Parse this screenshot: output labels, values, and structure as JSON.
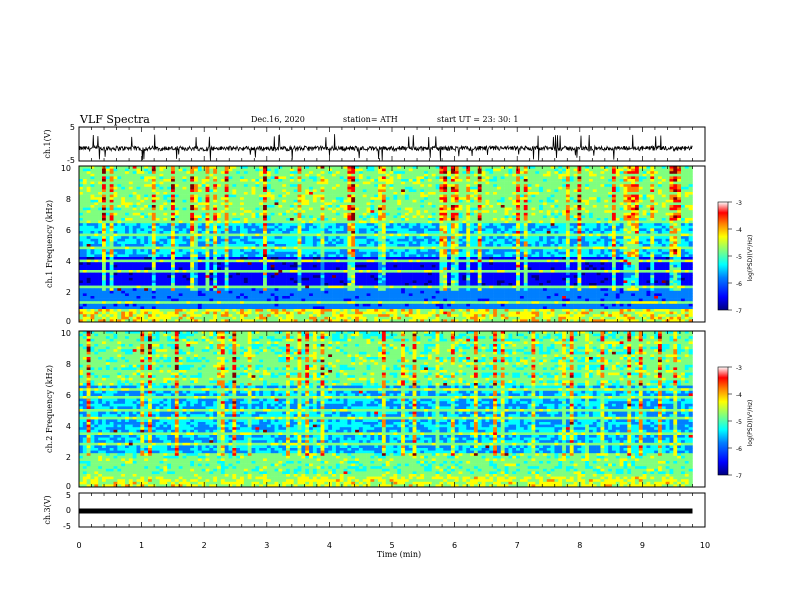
{
  "header": {
    "title": "VLF Spectra",
    "date": "Dec.16, 2020",
    "station": "station= ATH",
    "start_time": "start  UT  =   23: 30: 1"
  },
  "chart_data": [
    {
      "type": "line",
      "panel": "ch1-waveform",
      "ylabel": "ch.1(V)",
      "ylim": [
        -5,
        5
      ],
      "yticks": [
        "5",
        "-5"
      ],
      "xlim": [
        0,
        10
      ],
      "series": [
        {
          "name": "",
          "description_level": -1.3,
          "spike_range": [
            -5,
            2
          ]
        }
      ]
    },
    {
      "type": "heatmap",
      "panel": "ch1-spectrogram",
      "ylabel": "ch.1 Frequency (kHz)",
      "ylim": [
        0,
        10
      ],
      "yticks": [
        "0",
        "2",
        "4",
        "6",
        "8",
        "10"
      ],
      "xlim": [
        0,
        9.8
      ],
      "colorbar": {
        "label": "log(PSD)(V²/Hz)",
        "range": [
          -7,
          -3
        ],
        "ticks": [
          "-3",
          "-4",
          "-5",
          "-6",
          "-7"
        ]
      }
    },
    {
      "type": "heatmap",
      "panel": "ch2-spectrogram",
      "ylabel": "ch.2 Frequency (kHz)",
      "ylim": [
        0,
        10
      ],
      "yticks": [
        "0",
        "2",
        "4",
        "6",
        "8",
        "10"
      ],
      "xlim": [
        0,
        9.8
      ],
      "colorbar": {
        "label": "log(PSD)(V²/Hz)",
        "range": [
          -7,
          -3
        ],
        "ticks": [
          "-3",
          "-4",
          "-5",
          "-6",
          "-7"
        ]
      }
    },
    {
      "type": "line",
      "panel": "ch3-waveform",
      "ylabel": "ch.3(V)",
      "ylim": [
        -5,
        5
      ],
      "yticks": [
        "5",
        "0",
        "-5"
      ],
      "xlim": [
        0,
        10
      ],
      "series": [
        {
          "name": "",
          "constant_value": -0.3
        }
      ]
    }
  ],
  "x_axis": {
    "label": "Time  (min)",
    "ticks": [
      "0",
      "1",
      "2",
      "3",
      "4",
      "5",
      "6",
      "7",
      "8",
      "9",
      "10"
    ]
  },
  "colors": {
    "jet": [
      "#00007f",
      "#0000ff",
      "#007fff",
      "#00ffff",
      "#7fff7f",
      "#ffff00",
      "#ff7f00",
      "#ff0000",
      "#7f0000"
    ]
  }
}
